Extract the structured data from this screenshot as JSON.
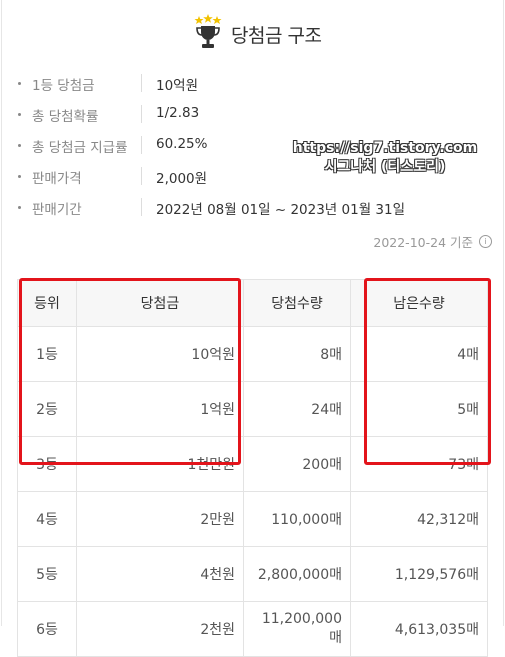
{
  "header": {
    "title": "당첨금 구조",
    "icon": "trophy-icon"
  },
  "info": [
    {
      "label": "1등 당첨금",
      "value": "10억원"
    },
    {
      "label": "총 당첨확률",
      "value": "1/2.83"
    },
    {
      "label": "총 당첨금 지급률",
      "value": "60.25%"
    },
    {
      "label": "판매가격",
      "value": "2,000원"
    },
    {
      "label": "판매기간",
      "value": "2022년 08월 01일 ~ 2023년 01월 31일"
    }
  ],
  "watermark": {
    "line1": "https://sig7.tistory.com",
    "line2": "시그나처 (티스토리)"
  },
  "basis": {
    "text": "2022-10-24 기준",
    "icon": "info-icon"
  },
  "table": {
    "headers": [
      "등위",
      "당첨금",
      "당첨수량",
      "남은수량"
    ],
    "rows": [
      [
        "1등",
        "10억원",
        "8매",
        "4매"
      ],
      [
        "2등",
        "1억원",
        "24매",
        "5매"
      ],
      [
        "3등",
        "1천만원",
        "200매",
        "73매"
      ],
      [
        "4등",
        "2만원",
        "110,000매",
        "42,312매"
      ],
      [
        "5등",
        "4천원",
        "2,800,000매",
        "1,129,576매"
      ],
      [
        "6등",
        "2천원",
        "11,200,000매",
        "4,613,035매"
      ]
    ]
  },
  "colors": {
    "highlight": "#e3141b",
    "trophy": "#333333",
    "stars": "#f2c200"
  }
}
